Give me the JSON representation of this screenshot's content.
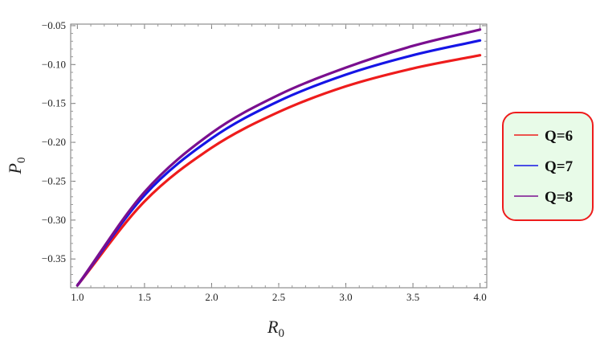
{
  "chart_data": {
    "type": "line",
    "title": "",
    "xlabel": {
      "main": "R",
      "sub": "0"
    },
    "ylabel": {
      "main": "P",
      "sub": "0"
    },
    "xlim": [
      0.95,
      4.05
    ],
    "ylim": [
      -0.387,
      -0.048
    ],
    "xticks": [
      1.0,
      1.5,
      2.0,
      2.5,
      3.0,
      3.5,
      4.0
    ],
    "xtick_labels": [
      "1.0",
      "1.5",
      "2.0",
      "2.5",
      "3.0",
      "3.5",
      "4.0"
    ],
    "yticks": [
      -0.35,
      -0.3,
      -0.25,
      -0.2,
      -0.15,
      -0.1,
      -0.05
    ],
    "ytick_labels": [
      "−0.35",
      "−0.30",
      "−0.25",
      "−0.20",
      "−0.15",
      "−0.10",
      "−0.05"
    ],
    "grid": false,
    "legend_position": "right",
    "x": [
      1.0,
      1.5,
      2.0,
      2.5,
      3.0,
      3.5,
      4.0
    ],
    "series": [
      {
        "name": "Q=6",
        "color": "#ee1c1c",
        "values": [
          -0.384,
          -0.276,
          -0.207,
          -0.161,
          -0.128,
          -0.105,
          -0.088
        ]
      },
      {
        "name": "Q=7",
        "color": "#1515e6",
        "values": [
          -0.384,
          -0.268,
          -0.195,
          -0.147,
          -0.113,
          -0.088,
          -0.069
        ]
      },
      {
        "name": "Q=8",
        "color": "#7a0f8f",
        "values": [
          -0.384,
          -0.264,
          -0.188,
          -0.139,
          -0.104,
          -0.076,
          -0.055
        ]
      }
    ],
    "legend_style": {
      "background": "#e8fbe8",
      "border": "#ee1c1c"
    }
  }
}
